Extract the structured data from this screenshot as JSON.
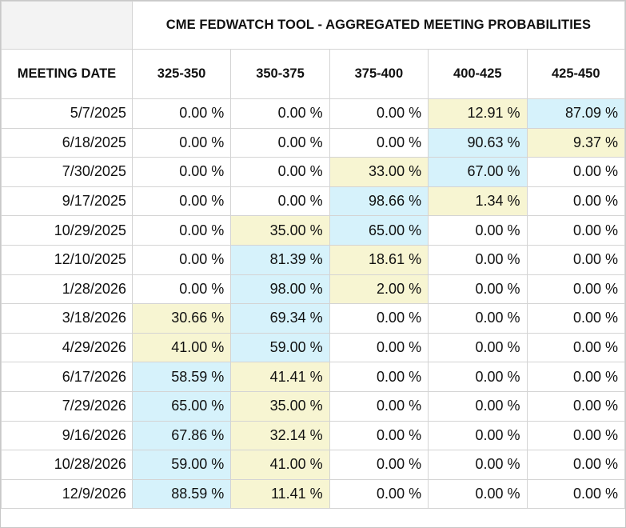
{
  "title": "CME FEDWATCH TOOL - AGGREGATED MEETING PROBABILITIES",
  "meeting_date_header": "MEETING DATE",
  "ranges": [
    "325-350",
    "350-375",
    "375-400",
    "400-425",
    "425-450"
  ],
  "colors": {
    "highest": "#d6f2fb",
    "second": "#f7f5d2",
    "header_blank": "#f3f3f3"
  },
  "rows": [
    {
      "date": "5/7/2025",
      "values": [
        "0.00 %",
        "0.00 %",
        "0.00 %",
        "12.91 %",
        "87.09 %"
      ],
      "shade": [
        "",
        "",
        "",
        "mid",
        "hi"
      ]
    },
    {
      "date": "6/18/2025",
      "values": [
        "0.00 %",
        "0.00 %",
        "0.00 %",
        "90.63 %",
        "9.37 %"
      ],
      "shade": [
        "",
        "",
        "",
        "hi",
        "mid"
      ]
    },
    {
      "date": "7/30/2025",
      "values": [
        "0.00 %",
        "0.00 %",
        "33.00 %",
        "67.00 %",
        "0.00 %"
      ],
      "shade": [
        "",
        "",
        "mid",
        "hi",
        ""
      ]
    },
    {
      "date": "9/17/2025",
      "values": [
        "0.00 %",
        "0.00 %",
        "98.66 %",
        "1.34 %",
        "0.00 %"
      ],
      "shade": [
        "",
        "",
        "hi",
        "mid",
        ""
      ]
    },
    {
      "date": "10/29/2025",
      "values": [
        "0.00 %",
        "35.00 %",
        "65.00 %",
        "0.00 %",
        "0.00 %"
      ],
      "shade": [
        "",
        "mid",
        "hi",
        "",
        ""
      ]
    },
    {
      "date": "12/10/2025",
      "values": [
        "0.00 %",
        "81.39 %",
        "18.61 %",
        "0.00 %",
        "0.00 %"
      ],
      "shade": [
        "",
        "hi",
        "mid",
        "",
        ""
      ]
    },
    {
      "date": "1/28/2026",
      "values": [
        "0.00 %",
        "98.00 %",
        "2.00 %",
        "0.00 %",
        "0.00 %"
      ],
      "shade": [
        "",
        "hi",
        "mid",
        "",
        ""
      ]
    },
    {
      "date": "3/18/2026",
      "values": [
        "30.66 %",
        "69.34 %",
        "0.00 %",
        "0.00 %",
        "0.00 %"
      ],
      "shade": [
        "mid",
        "hi",
        "",
        "",
        ""
      ]
    },
    {
      "date": "4/29/2026",
      "values": [
        "41.00 %",
        "59.00 %",
        "0.00 %",
        "0.00 %",
        "0.00 %"
      ],
      "shade": [
        "mid",
        "hi",
        "",
        "",
        ""
      ]
    },
    {
      "date": "6/17/2026",
      "values": [
        "58.59 %",
        "41.41 %",
        "0.00 %",
        "0.00 %",
        "0.00 %"
      ],
      "shade": [
        "hi",
        "mid",
        "",
        "",
        ""
      ]
    },
    {
      "date": "7/29/2026",
      "values": [
        "65.00 %",
        "35.00 %",
        "0.00 %",
        "0.00 %",
        "0.00 %"
      ],
      "shade": [
        "hi",
        "mid",
        "",
        "",
        ""
      ]
    },
    {
      "date": "9/16/2026",
      "values": [
        "67.86 %",
        "32.14 %",
        "0.00 %",
        "0.00 %",
        "0.00 %"
      ],
      "shade": [
        "hi",
        "mid",
        "",
        "",
        ""
      ]
    },
    {
      "date": "10/28/2026",
      "values": [
        "59.00 %",
        "41.00 %",
        "0.00 %",
        "0.00 %",
        "0.00 %"
      ],
      "shade": [
        "hi",
        "mid",
        "",
        "",
        ""
      ]
    },
    {
      "date": "12/9/2026",
      "values": [
        "88.59 %",
        "11.41 %",
        "0.00 %",
        "0.00 %",
        "0.00 %"
      ],
      "shade": [
        "hi",
        "mid",
        "",
        "",
        ""
      ]
    }
  ]
}
